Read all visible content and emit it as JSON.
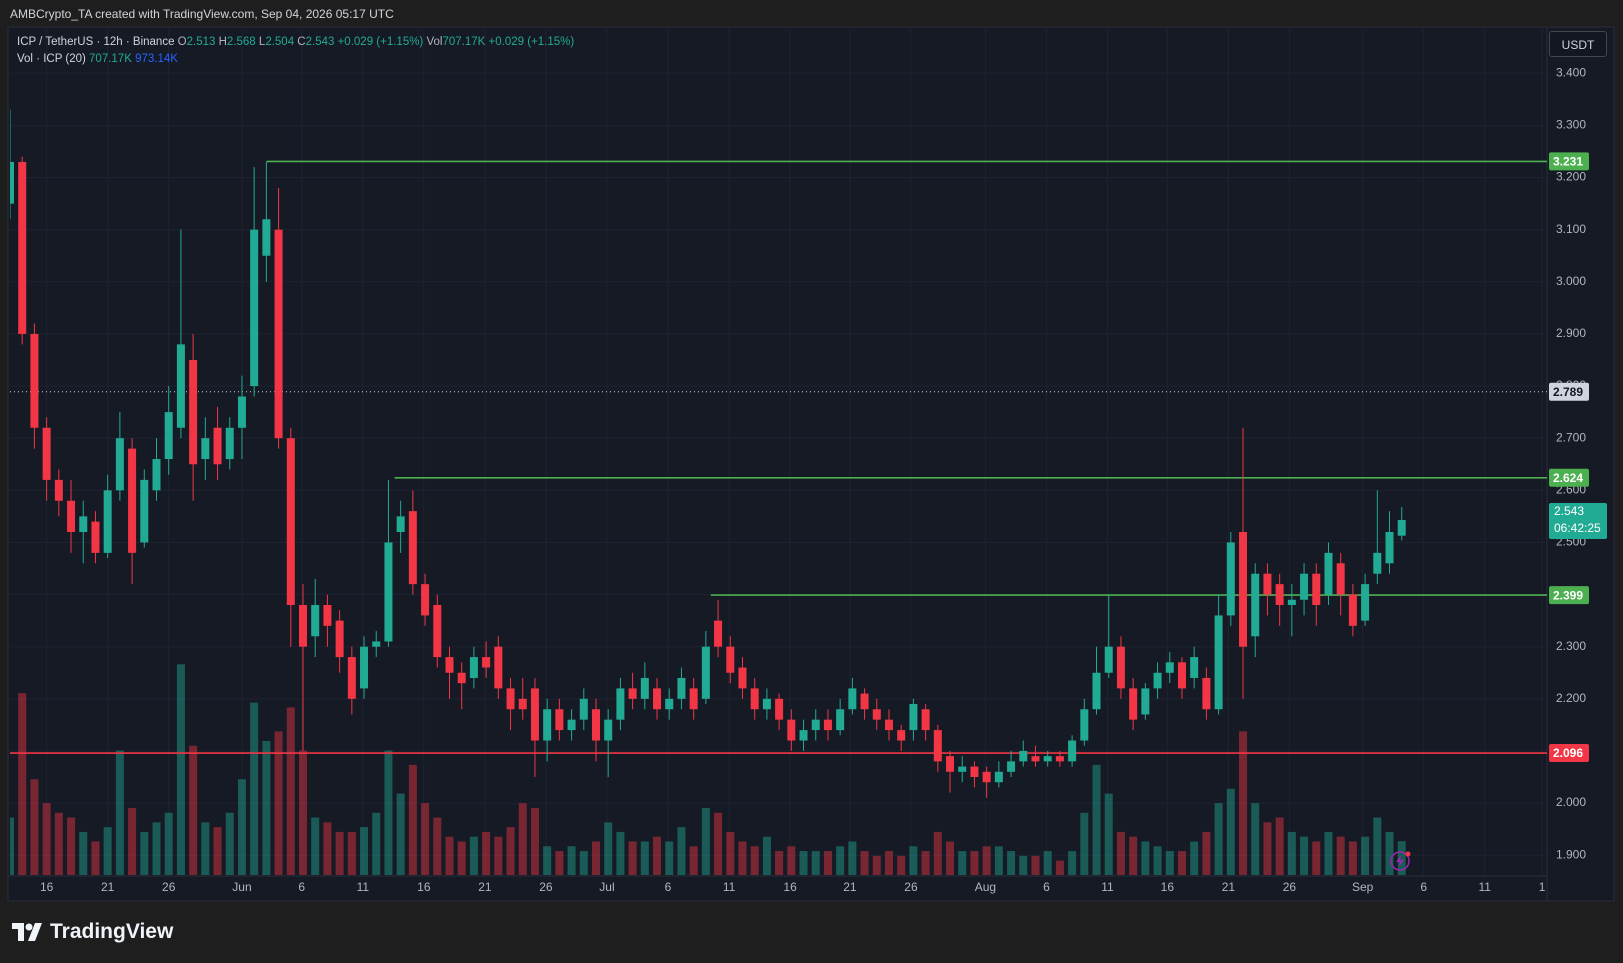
{
  "header": {
    "caption": "AMBCrypto_TA created with TradingView.com, Sep 04, 2026 05:17 UTC",
    "currency": "USDT",
    "brand": "TradingView"
  },
  "legend": {
    "symbol": "ICP / TetherUS · 12h · Binance",
    "o": "O",
    "h": "H",
    "l": "L",
    "c": "C",
    "change": "+0.029 (+1.15%)",
    "vol": "Vol",
    "vol_value": "707.17K",
    "vol_change": "+0.029 (+1.15%)",
    "study": "Vol · ICP (20)",
    "study_vol": "707.17K",
    "study_ma": "973.14K"
  },
  "chart_data": {
    "type": "candlestick",
    "up_color": "#22ab94",
    "down_color": "#f23645",
    "grid": true,
    "ylim": [
      1.862,
      3.485
    ],
    "yticks": [
      {
        "value": 1.9,
        "label": "1.900"
      },
      {
        "value": 2.0,
        "label": "2.000"
      },
      {
        "value": 2.1,
        "label": "2.100"
      },
      {
        "value": 2.2,
        "label": "2.200"
      },
      {
        "value": 2.3,
        "label": "2.300"
      },
      {
        "value": 2.4,
        "label": "2.400"
      },
      {
        "value": 2.5,
        "label": "2.500"
      },
      {
        "value": 2.6,
        "label": "2.600"
      },
      {
        "value": 2.7,
        "label": "2.700"
      },
      {
        "value": 2.8,
        "label": "2.800"
      },
      {
        "value": 2.9,
        "label": "2.900"
      },
      {
        "value": 3.0,
        "label": "3.000"
      },
      {
        "value": 3.1,
        "label": "3.100"
      },
      {
        "value": 3.2,
        "label": "3.200"
      },
      {
        "value": 3.3,
        "label": "3.300"
      },
      {
        "value": 3.4,
        "label": "3.400"
      }
    ],
    "xlim": [
      0,
      125.9
    ],
    "xticks": [
      {
        "value": 3,
        "label": "16"
      },
      {
        "value": 8,
        "label": "21"
      },
      {
        "value": 13,
        "label": "26"
      },
      {
        "value": 19,
        "label": "Jun"
      },
      {
        "value": 23.9,
        "label": "6"
      },
      {
        "value": 28.9,
        "label": "11"
      },
      {
        "value": 33.9,
        "label": "16"
      },
      {
        "value": 38.9,
        "label": "21"
      },
      {
        "value": 43.9,
        "label": "26"
      },
      {
        "value": 48.9,
        "label": "Jul"
      },
      {
        "value": 53.9,
        "label": "6"
      },
      {
        "value": 58.9,
        "label": "11"
      },
      {
        "value": 63.9,
        "label": "16"
      },
      {
        "value": 68.8,
        "label": "21"
      },
      {
        "value": 73.8,
        "label": "26"
      },
      {
        "value": 79.9,
        "label": "Aug"
      },
      {
        "value": 84.9,
        "label": "6"
      },
      {
        "value": 89.9,
        "label": "11"
      },
      {
        "value": 94.8,
        "label": "16"
      },
      {
        "value": 99.8,
        "label": "21"
      },
      {
        "value": 104.8,
        "label": "26"
      },
      {
        "value": 110.8,
        "label": "Sep"
      },
      {
        "value": 115.8,
        "label": "6"
      },
      {
        "value": 120.8,
        "label": "11"
      },
      {
        "value": 125.5,
        "label": "1"
      }
    ],
    "candles": [
      [
        3.15,
        3.33,
        3.12,
        3.23
      ],
      [
        3.23,
        3.24,
        2.88,
        2.9
      ],
      [
        2.9,
        2.92,
        2.68,
        2.72
      ],
      [
        2.72,
        2.74,
        2.58,
        2.62
      ],
      [
        2.62,
        2.64,
        2.55,
        2.58
      ],
      [
        2.58,
        2.62,
        2.48,
        2.52
      ],
      [
        2.52,
        2.58,
        2.46,
        2.55
      ],
      [
        2.54,
        2.56,
        2.46,
        2.48
      ],
      [
        2.48,
        2.63,
        2.47,
        2.6
      ],
      [
        2.6,
        2.75,
        2.58,
        2.7
      ],
      [
        2.68,
        2.7,
        2.42,
        2.48
      ],
      [
        2.5,
        2.64,
        2.49,
        2.62
      ],
      [
        2.6,
        2.7,
        2.58,
        2.66
      ],
      [
        2.66,
        2.8,
        2.63,
        2.75
      ],
      [
        2.72,
        3.1,
        2.7,
        2.88
      ],
      [
        2.85,
        2.9,
        2.58,
        2.65
      ],
      [
        2.66,
        2.74,
        2.62,
        2.7
      ],
      [
        2.72,
        2.76,
        2.62,
        2.65
      ],
      [
        2.66,
        2.74,
        2.64,
        2.72
      ],
      [
        2.72,
        2.82,
        2.66,
        2.78
      ],
      [
        2.8,
        3.22,
        2.78,
        3.1
      ],
      [
        3.05,
        3.23,
        3.0,
        3.12
      ],
      [
        3.1,
        3.18,
        2.68,
        2.7
      ],
      [
        2.7,
        2.72,
        2.3,
        2.38
      ],
      [
        2.38,
        2.42,
        2.1,
        2.3
      ],
      [
        2.32,
        2.43,
        2.28,
        2.38
      ],
      [
        2.38,
        2.4,
        2.3,
        2.34
      ],
      [
        2.35,
        2.37,
        2.25,
        2.28
      ],
      [
        2.28,
        2.3,
        2.17,
        2.2
      ],
      [
        2.22,
        2.32,
        2.2,
        2.3
      ],
      [
        2.3,
        2.33,
        2.28,
        2.31
      ],
      [
        2.31,
        2.62,
        2.3,
        2.5
      ],
      [
        2.52,
        2.58,
        2.48,
        2.55
      ],
      [
        2.56,
        2.6,
        2.4,
        2.42
      ],
      [
        2.42,
        2.44,
        2.34,
        2.36
      ],
      [
        2.38,
        2.4,
        2.26,
        2.28
      ],
      [
        2.28,
        2.3,
        2.2,
        2.25
      ],
      [
        2.25,
        2.27,
        2.18,
        2.23
      ],
      [
        2.24,
        2.3,
        2.22,
        2.28
      ],
      [
        2.28,
        2.31,
        2.24,
        2.26
      ],
      [
        2.3,
        2.32,
        2.2,
        2.22
      ],
      [
        2.22,
        2.24,
        2.14,
        2.18
      ],
      [
        2.2,
        2.24,
        2.16,
        2.18
      ],
      [
        2.22,
        2.24,
        2.05,
        2.12
      ],
      [
        2.12,
        2.2,
        2.08,
        2.18
      ],
      [
        2.18,
        2.2,
        2.12,
        2.14
      ],
      [
        2.14,
        2.18,
        2.12,
        2.16
      ],
      [
        2.16,
        2.22,
        2.14,
        2.2
      ],
      [
        2.18,
        2.2,
        2.08,
        2.12
      ],
      [
        2.12,
        2.18,
        2.05,
        2.16
      ],
      [
        2.16,
        2.24,
        2.14,
        2.22
      ],
      [
        2.22,
        2.25,
        2.18,
        2.2
      ],
      [
        2.2,
        2.27,
        2.18,
        2.24
      ],
      [
        2.22,
        2.24,
        2.16,
        2.18
      ],
      [
        2.18,
        2.22,
        2.16,
        2.2
      ],
      [
        2.2,
        2.26,
        2.18,
        2.24
      ],
      [
        2.22,
        2.24,
        2.16,
        2.18
      ],
      [
        2.2,
        2.33,
        2.19,
        2.3
      ],
      [
        2.35,
        2.39,
        2.28,
        2.3
      ],
      [
        2.3,
        2.32,
        2.23,
        2.25
      ],
      [
        2.26,
        2.28,
        2.2,
        2.22
      ],
      [
        2.22,
        2.24,
        2.16,
        2.18
      ],
      [
        2.18,
        2.22,
        2.16,
        2.2
      ],
      [
        2.2,
        2.21,
        2.14,
        2.16
      ],
      [
        2.16,
        2.18,
        2.1,
        2.12
      ],
      [
        2.12,
        2.16,
        2.1,
        2.14
      ],
      [
        2.14,
        2.18,
        2.12,
        2.16
      ],
      [
        2.16,
        2.18,
        2.12,
        2.14
      ],
      [
        2.14,
        2.2,
        2.13,
        2.18
      ],
      [
        2.18,
        2.24,
        2.17,
        2.22
      ],
      [
        2.21,
        2.22,
        2.16,
        2.18
      ],
      [
        2.18,
        2.2,
        2.14,
        2.16
      ],
      [
        2.16,
        2.18,
        2.12,
        2.14
      ],
      [
        2.14,
        2.15,
        2.1,
        2.12
      ],
      [
        2.14,
        2.2,
        2.12,
        2.19
      ],
      [
        2.18,
        2.19,
        2.12,
        2.14
      ],
      [
        2.14,
        2.15,
        2.06,
        2.08
      ],
      [
        2.09,
        2.1,
        2.02,
        2.06
      ],
      [
        2.06,
        2.09,
        2.04,
        2.07
      ],
      [
        2.07,
        2.08,
        2.03,
        2.05
      ],
      [
        2.06,
        2.07,
        2.01,
        2.04
      ],
      [
        2.04,
        2.08,
        2.03,
        2.06
      ],
      [
        2.06,
        2.1,
        2.05,
        2.08
      ],
      [
        2.08,
        2.12,
        2.07,
        2.1
      ],
      [
        2.09,
        2.11,
        2.07,
        2.08
      ],
      [
        2.08,
        2.1,
        2.07,
        2.09
      ],
      [
        2.09,
        2.1,
        2.07,
        2.08
      ],
      [
        2.08,
        2.13,
        2.07,
        2.12
      ],
      [
        2.12,
        2.2,
        2.11,
        2.18
      ],
      [
        2.18,
        2.3,
        2.17,
        2.25
      ],
      [
        2.25,
        2.4,
        2.24,
        2.3
      ],
      [
        2.3,
        2.32,
        2.2,
        2.22
      ],
      [
        2.22,
        2.24,
        2.14,
        2.16
      ],
      [
        2.17,
        2.23,
        2.16,
        2.22
      ],
      [
        2.22,
        2.27,
        2.2,
        2.25
      ],
      [
        2.25,
        2.29,
        2.23,
        2.27
      ],
      [
        2.27,
        2.28,
        2.2,
        2.22
      ],
      [
        2.24,
        2.3,
        2.22,
        2.28
      ],
      [
        2.24,
        2.26,
        2.16,
        2.18
      ],
      [
        2.18,
        2.4,
        2.17,
        2.36
      ],
      [
        2.36,
        2.52,
        2.34,
        2.5
      ],
      [
        2.52,
        2.72,
        2.2,
        2.3
      ],
      [
        2.32,
        2.46,
        2.28,
        2.44
      ],
      [
        2.44,
        2.46,
        2.36,
        2.4
      ],
      [
        2.42,
        2.44,
        2.34,
        2.38
      ],
      [
        2.38,
        2.42,
        2.32,
        2.39
      ],
      [
        2.39,
        2.46,
        2.36,
        2.44
      ],
      [
        2.44,
        2.46,
        2.34,
        2.38
      ],
      [
        2.4,
        2.5,
        2.38,
        2.48
      ],
      [
        2.46,
        2.48,
        2.36,
        2.4
      ],
      [
        2.4,
        2.42,
        2.32,
        2.34
      ],
      [
        2.35,
        2.44,
        2.34,
        2.42
      ],
      [
        2.44,
        2.6,
        2.42,
        2.48
      ],
      [
        2.46,
        2.56,
        2.44,
        2.52
      ],
      [
        2.513,
        2.568,
        2.504,
        2.543
      ]
    ],
    "volume_ylim": [
      0,
      4700
    ],
    "volumes": [
      1200,
      3800,
      2000,
      1500,
      1300,
      1200,
      900,
      700,
      1000,
      2600,
      1400,
      900,
      1100,
      1300,
      4400,
      2700,
      1100,
      1000,
      1300,
      2000,
      3600,
      2800,
      3000,
      3500,
      2600,
      1200,
      1100,
      900,
      900,
      1000,
      1300,
      2600,
      1700,
      2300,
      1500,
      1200,
      800,
      700,
      800,
      900,
      800,
      1000,
      1500,
      1400,
      600,
      500,
      600,
      500,
      700,
      1100,
      900,
      700,
      700,
      800,
      700,
      1000,
      600,
      1400,
      1300,
      900,
      700,
      600,
      800,
      500,
      600,
      500,
      500,
      500,
      600,
      700,
      500,
      400,
      500,
      400,
      600,
      500,
      900,
      700,
      500,
      500,
      600,
      600,
      500,
      400,
      400,
      500,
      300,
      500,
      1300,
      2300,
      1700,
      900,
      800,
      700,
      600,
      500,
      500,
      700,
      900,
      1500,
      1800,
      3000,
      1500,
      1100,
      1200,
      900,
      800,
      700,
      900,
      800,
      700,
      800,
      1200,
      900,
      707.17
    ],
    "levels": [
      {
        "value": 3.231,
        "from": 21,
        "color": "#4caf50",
        "style": "solid"
      },
      {
        "value": 2.789,
        "from": 0,
        "color": "#d1d4dc",
        "style": "dotted"
      },
      {
        "value": 2.624,
        "from": 31.5,
        "color": "#4caf50",
        "style": "solid"
      },
      {
        "value": 2.399,
        "from": 57.4,
        "color": "#4caf50",
        "style": "solid"
      },
      {
        "value": 2.096,
        "from": 0,
        "color": "#f23645",
        "style": "solid"
      }
    ],
    "countdown": "06:42:25"
  }
}
